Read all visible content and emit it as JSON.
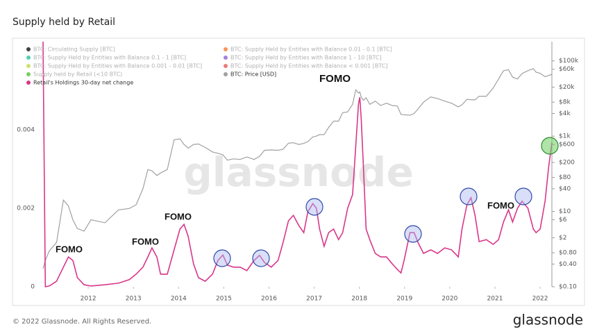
{
  "title": "Supply held by Retail",
  "copyright": "© 2022 Glassnode. All Rights Reserved.",
  "logo": "glassnode",
  "chart_data": {
    "type": "line",
    "watermark": "glassnode",
    "x": [
      2011.0,
      2011.05,
      2011.14,
      2011.3,
      2011.45,
      2011.56,
      2011.66,
      2011.76,
      2011.91,
      2012.06,
      2012.37,
      2012.67,
      2012.91,
      2013.06,
      2013.21,
      2013.32,
      2013.41,
      2013.52,
      2013.6,
      2013.75,
      2013.9,
      2014.03,
      2014.12,
      2014.21,
      2014.33,
      2014.44,
      2014.59,
      2014.75,
      2014.87,
      2014.98,
      2015.08,
      2015.21,
      2015.36,
      2015.51,
      2015.67,
      2015.79,
      2015.9,
      2016.05,
      2016.2,
      2016.31,
      2016.43,
      2016.54,
      2016.66,
      2016.77,
      2016.86,
      2016.97,
      2017.05,
      2017.12,
      2017.22,
      2017.32,
      2017.43,
      2017.54,
      2017.63,
      2017.74,
      2017.85,
      2017.92,
      2017.98,
      2018.01,
      2018.04,
      2018.09,
      2018.15,
      2018.23,
      2018.35,
      2018.47,
      2018.6,
      2018.73,
      2018.84,
      2018.92,
      2018.99,
      2019.12,
      2019.21,
      2019.3,
      2019.42,
      2019.58,
      2019.73,
      2019.89,
      2020.04,
      2020.19,
      2020.27,
      2020.38,
      2020.47,
      2020.56,
      2020.65,
      2020.81,
      2020.96,
      2021.08,
      2021.19,
      2021.3,
      2021.39,
      2021.5,
      2021.6,
      2021.73,
      2021.85,
      2021.91,
      2022.0,
      2022.11,
      2022.19,
      2022.26
    ],
    "series": [
      {
        "name": "Retail's Holdings 30-day net change",
        "color": "#d9368a",
        "values": [
          0.00625,
          0,
          2e-05,
          0.00014,
          0.0005,
          0.00076,
          0.00067,
          0.00023,
          5e-05,
          2e-05,
          5e-05,
          9e-05,
          0.00018,
          0.00032,
          0.0005,
          0.00076,
          0.00099,
          0.00076,
          0.00032,
          0.00032,
          0.00094,
          0.00147,
          0.00159,
          0.00129,
          0.00058,
          0.00023,
          0.00014,
          0.00032,
          0.00067,
          0.00081,
          0.00055,
          0.0005,
          0.0005,
          0.00041,
          0.00067,
          0.0008,
          0.00062,
          0.0005,
          0.00067,
          0.00112,
          0.00168,
          0.00182,
          0.00156,
          0.00138,
          0.00191,
          0.00212,
          0.002,
          0.00147,
          0.00103,
          0.00138,
          0.00147,
          0.0012,
          0.00138,
          0.002,
          0.00235,
          0.00359,
          0.00466,
          0.00483,
          0.0043,
          0.00306,
          0.00147,
          0.0012,
          0.00085,
          0.00076,
          0.00076,
          0.00058,
          0.00044,
          0.00035,
          0.00067,
          0.00138,
          0.00138,
          0.00112,
          0.00085,
          0.00094,
          0.00085,
          0.00099,
          0.00094,
          0.00076,
          0.00147,
          0.00209,
          0.00227,
          0.00182,
          0.00115,
          0.0012,
          0.00108,
          0.0012,
          0.00165,
          0.00196,
          0.00165,
          0.002,
          0.00218,
          0.002,
          0.00147,
          0.00138,
          0.00147,
          0.00218,
          0.00306,
          0.00368
        ]
      },
      {
        "name": "BTC: Price [USD]",
        "color": "#a0a0a0",
        "axis": "y2",
        "values": [
          0.3,
          0.5,
          0.9,
          1.5,
          20,
          14,
          6,
          3.5,
          3,
          6,
          5,
          11,
          12,
          15,
          40,
          130,
          120,
          90,
          105,
          130,
          800,
          850,
          600,
          480,
          600,
          620,
          500,
          380,
          350,
          320,
          230,
          250,
          240,
          280,
          240,
          290,
          420,
          430,
          420,
          450,
          650,
          670,
          600,
          640,
          720,
          950,
          1000,
          1100,
          1100,
          1700,
          2500,
          2500,
          4200,
          4400,
          7000,
          17000,
          14000,
          15000,
          11000,
          9000,
          10500,
          7000,
          8500,
          6500,
          7500,
          6500,
          6300,
          3800,
          3700,
          3600,
          4000,
          5300,
          8000,
          11000,
          10000,
          8500,
          7500,
          6000,
          6800,
          9500,
          9300,
          9200,
          11500,
          11500,
          19000,
          33000,
          55000,
          58000,
          37000,
          33000,
          46000,
          55000,
          62000,
          50000,
          47000,
          38000,
          41000,
          44000
        ]
      }
    ],
    "hidden_series": [
      {
        "name": "BTC: Circulating Supply [BTC]",
        "color": "#111111"
      },
      {
        "name": "BTC: Supply Held by Entities with Balance 0.01 - 0.1 [BTC]",
        "color": "#f47a2e"
      },
      {
        "name": "BTC: Supply Held by Entities with Balance 0.1 - 1 [BTC]",
        "color": "#27c4a2"
      },
      {
        "name": "BTC: Supply Held by Entities with Balance 1 - 10 [BTC]",
        "color": "#8c63d6"
      },
      {
        "name": "BTC: Supply Held by Entities with Balance 0.001 - 0.01 [BTC]",
        "color": "#c6d84c"
      },
      {
        "name": "BTC: Supply Held by Entities with Balance < 0.001 [BTC]",
        "color": "#e65a5a"
      },
      {
        "name": "Supply held by Retail (<10 BTC)",
        "color": "#5bbf3d"
      }
    ],
    "xlim": [
      2011.0,
      2022.26
    ],
    "xticks": [
      2012,
      2013,
      2014,
      2015,
      2016,
      2017,
      2018,
      2019,
      2020,
      2021,
      2022
    ],
    "ylim": [
      0,
      0.00625
    ],
    "yticks": [
      0,
      0.002,
      0.004
    ],
    "y2lim": [
      0.1,
      324000
    ],
    "y2log": true,
    "y2ticks": [
      {
        "value": 0.1,
        "label": "$0.10"
      },
      {
        "value": 0.4,
        "label": "$0.40"
      },
      {
        "value": 0.8,
        "label": "$0.80"
      },
      {
        "value": 2,
        "label": "$2"
      },
      {
        "value": 6,
        "label": "$6"
      },
      {
        "value": 10,
        "label": "$10"
      },
      {
        "value": 40,
        "label": "$40"
      },
      {
        "value": 80,
        "label": "$80"
      },
      {
        "value": 200,
        "label": "$200"
      },
      {
        "value": 600,
        "label": "$600"
      },
      {
        "value": 1000,
        "label": "$1k"
      },
      {
        "value": 4000,
        "label": "$4k"
      },
      {
        "value": 8000,
        "label": "$8k"
      },
      {
        "value": 20000,
        "label": "$20k"
      },
      {
        "value": 60000,
        "label": "$60k"
      },
      {
        "value": 100000,
        "label": "$100k"
      }
    ],
    "grid": false,
    "annotations": [
      "FOMO",
      "FOMO",
      "FOMO",
      "FOMO",
      "FOMO"
    ]
  }
}
